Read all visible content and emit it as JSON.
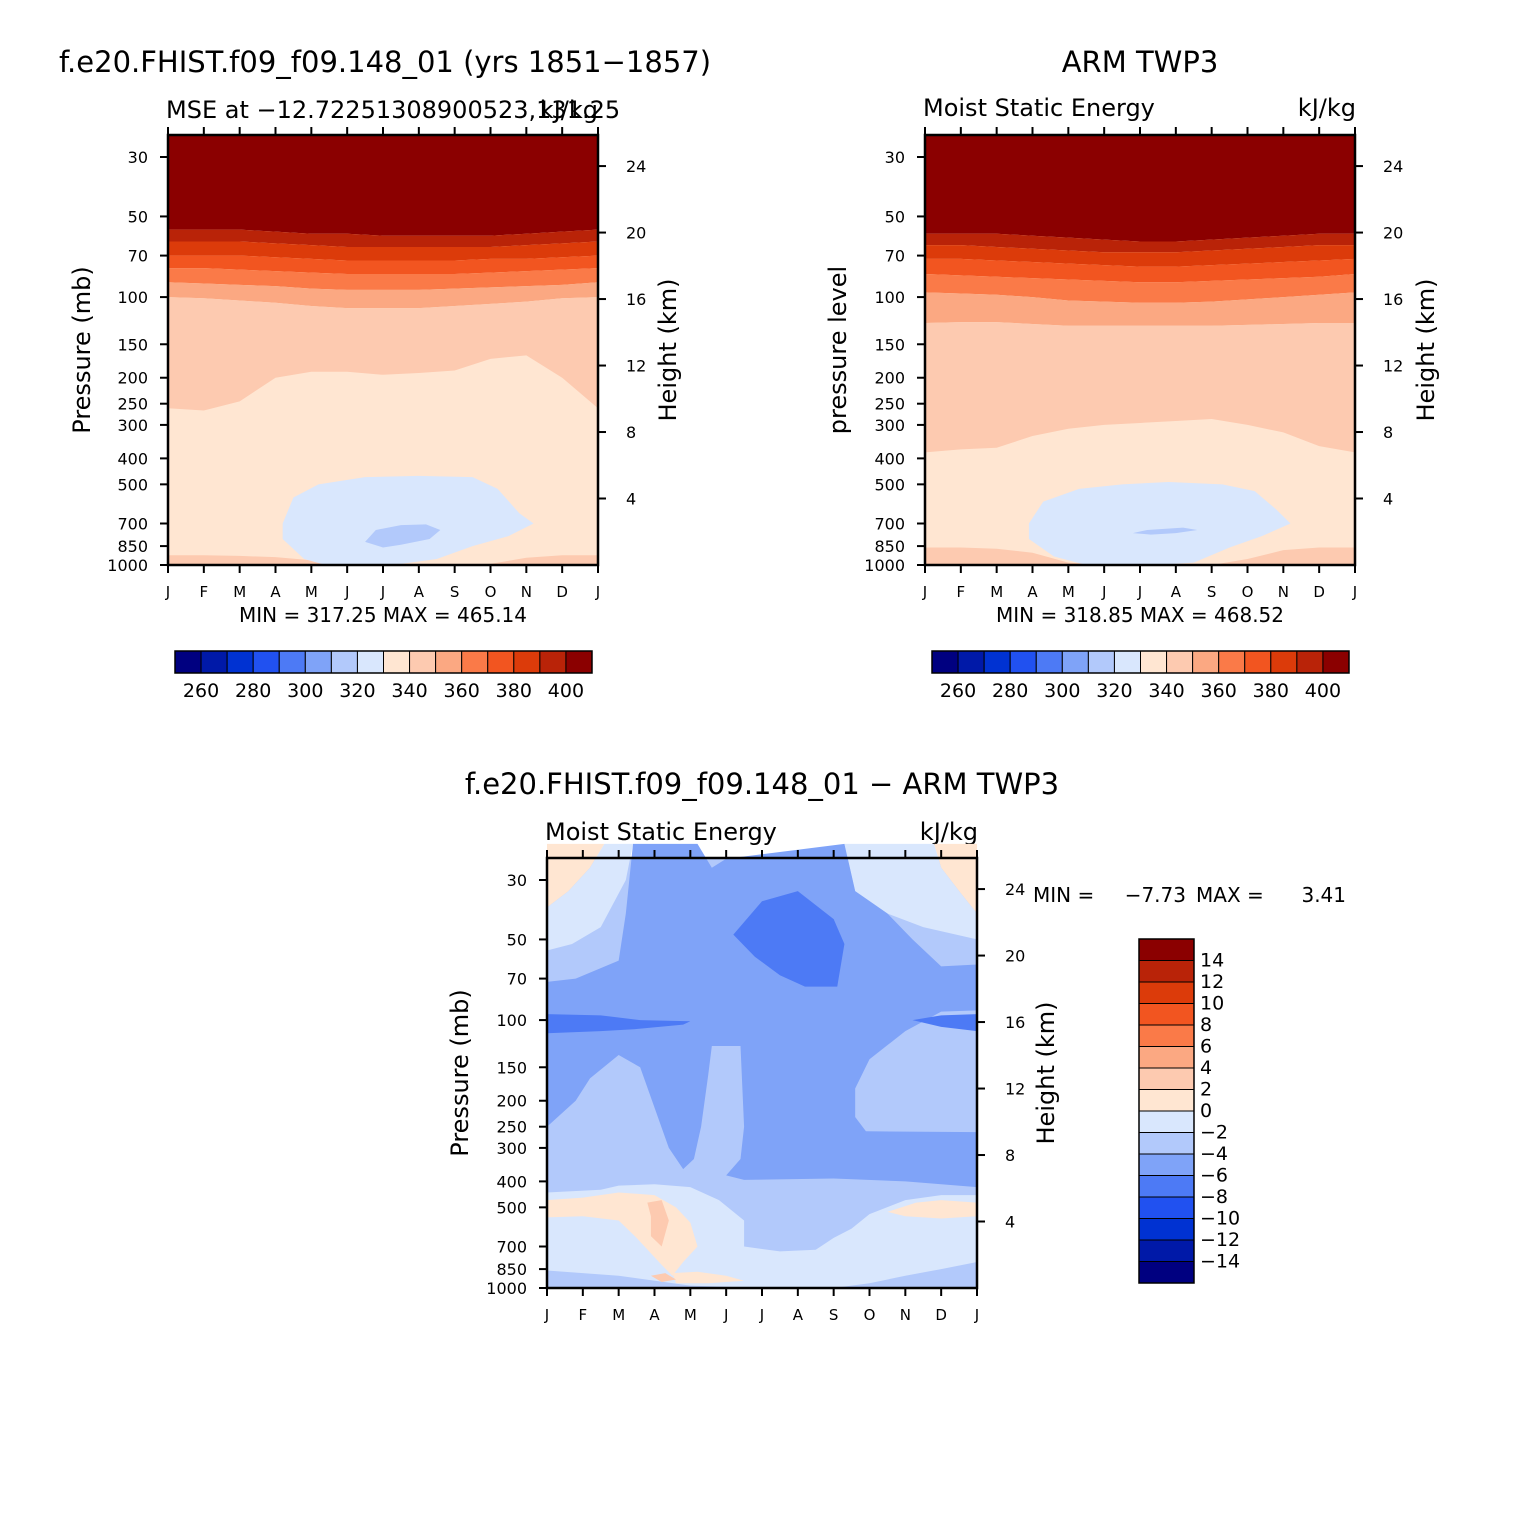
{
  "colors": {
    "mse_levels": [
      "#000080",
      "#0019a8",
      "#0032d2",
      "#2151f0",
      "#4d7af5",
      "#7fa3f8",
      "#b2c9fb",
      "#d9e7fd",
      "#ffe6d2",
      "#fdcab0",
      "#fba882",
      "#fa7a48",
      "#f25520",
      "#dc3b0a",
      "#b92308",
      "#8b0000"
    ],
    "diff_levels": [
      "#000080",
      "#0019a8",
      "#0032d2",
      "#2151f0",
      "#4d7af5",
      "#7fa3f8",
      "#b2c9fb",
      "#d9e7fd",
      "#ffe6d2",
      "#fdcab0",
      "#fba882",
      "#fa7a48",
      "#f25520",
      "#dc3b0a",
      "#b92308",
      "#8b0000"
    ]
  },
  "chart_data": [
    {
      "type": "heatmap",
      "title": "f.e20.FHIST.f09_f09.148_01 (yrs 1851−1857)",
      "left_subtitle": "MSE at −12.72251308900523,131.25",
      "right_subtitle": "kJ/kg",
      "ylabel": "Pressure (mb)",
      "y2label": "Height (km)",
      "months": [
        "J",
        "F",
        "M",
        "A",
        "M",
        "J",
        "J",
        "A",
        "S",
        "O",
        "N",
        "D",
        "J"
      ],
      "pressure_ticks": [
        30,
        50,
        70,
        100,
        150,
        200,
        250,
        300,
        400,
        500,
        700,
        850,
        1000
      ],
      "height_ticks": [
        24,
        20,
        16,
        12,
        8,
        4
      ],
      "stats": "MIN = 317.25 MAX = 465.14",
      "colorbar_labels": [
        "260",
        "280",
        "300",
        "320",
        "340",
        "360",
        "380",
        "400"
      ],
      "contours": {
        "level_10": [
          58,
          56,
          55,
          56,
          57,
          58,
          60,
          60,
          60,
          60,
          60,
          59,
          58
        ],
        "level_9": [
          64,
          63,
          62,
          64,
          66,
          66,
          68,
          68,
          68,
          68,
          68,
          66,
          64
        ],
        "level_8": [
          72,
          72,
          71,
          73,
          75,
          76,
          77,
          77,
          77,
          76,
          75,
          74,
          72
        ],
        "level_7": [
          84,
          84,
          83,
          86,
          89,
          90,
          92,
          93,
          92,
          91,
          89,
          87,
          84
        ],
        "level_6": [
          260,
          265,
          245,
          200,
          190,
          190,
          195,
          192,
          188,
          170,
          165,
          200,
          260
        ],
        "level_5_center": [
          7.3,
          1000
        ],
        "level_5_width": [
          3.6,
          0.3
        ],
        "level_4_center": [
          6.6,
          700
        ]
      }
    },
    {
      "type": "heatmap",
      "title": "ARM TWP3",
      "left_subtitle": "Moist Static Energy",
      "right_subtitle": "kJ/kg",
      "ylabel": "pressure level",
      "y2label": "Height (km)",
      "months": [
        "J",
        "F",
        "M",
        "A",
        "M",
        "J",
        "J",
        "A",
        "S",
        "O",
        "N",
        "D",
        "J"
      ],
      "pressure_ticks": [
        30,
        50,
        70,
        100,
        150,
        200,
        250,
        300,
        400,
        500,
        700,
        850,
        1000
      ],
      "height_ticks": [
        24,
        20,
        16,
        12,
        8,
        4
      ],
      "stats": "MIN = 318.85 MAX = 468.52",
      "colorbar_labels": [
        "260",
        "280",
        "300",
        "320",
        "340",
        "360",
        "380",
        "400"
      ]
    },
    {
      "type": "heatmap",
      "title": "f.e20.FHIST.f09_f09.148_01 − ARM TWP3",
      "left_subtitle": "Moist Static Energy",
      "right_subtitle": "kJ/kg",
      "ylabel": "Pressure (mb)",
      "y2label": "Height (km)",
      "months": [
        "J",
        "F",
        "M",
        "A",
        "M",
        "J",
        "J",
        "A",
        "S",
        "O",
        "N",
        "D",
        "J"
      ],
      "pressure_ticks": [
        30,
        50,
        70,
        100,
        150,
        200,
        250,
        300,
        400,
        500,
        700,
        850,
        1000
      ],
      "height_ticks": [
        24,
        20,
        16,
        12,
        8,
        4
      ],
      "stats_min_label": "MIN =",
      "stats_min_value": "−7.73",
      "stats_max_label": "MAX =",
      "stats_max_value": "3.41",
      "colorbar_labels": [
        "14",
        "12",
        "10",
        "8",
        "6",
        "4",
        "2",
        "0",
        "−2",
        "−4",
        "−6",
        "−8",
        "−10",
        "−12",
        "−14"
      ]
    }
  ]
}
